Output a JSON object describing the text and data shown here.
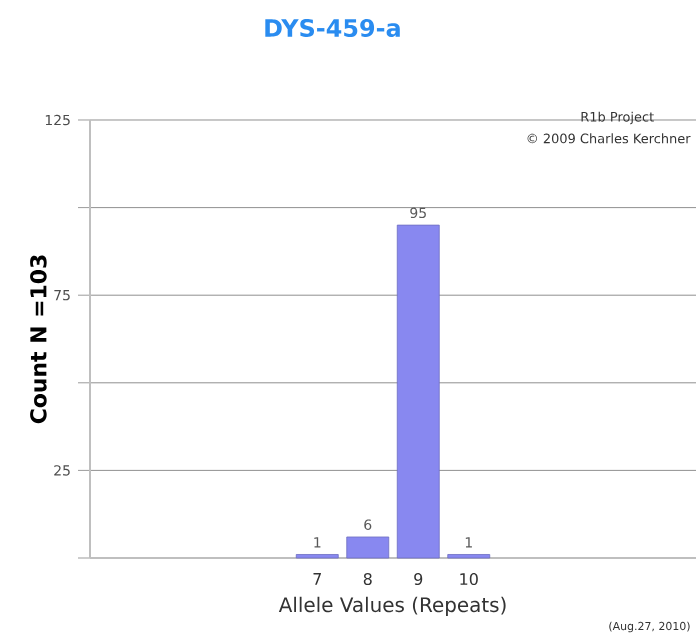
{
  "chart_data": {
    "type": "bar",
    "title": "DYS-459-a",
    "xlabel": "Allele Values (Repeats)",
    "ylabel": "Count N =103",
    "categories": [
      null,
      null,
      null,
      null,
      "7",
      "8",
      "9",
      "10",
      null,
      null,
      null,
      null
    ],
    "values": [
      null,
      null,
      null,
      null,
      1,
      6,
      95,
      1,
      null,
      null,
      null,
      null
    ],
    "color": "#8888f0",
    "ylim": [
      0,
      125
    ],
    "yticks": [
      {
        "value": 0,
        "label": null
      },
      25,
      {
        "value": 50,
        "label": null
      },
      75,
      {
        "value": 100,
        "label": null
      },
      125
    ],
    "grid": "y",
    "data_labels": true,
    "annotations": [
      "R1b Project",
      "© 2009 Charles Kerchner",
      "(Aug.27, 2010)"
    ]
  }
}
